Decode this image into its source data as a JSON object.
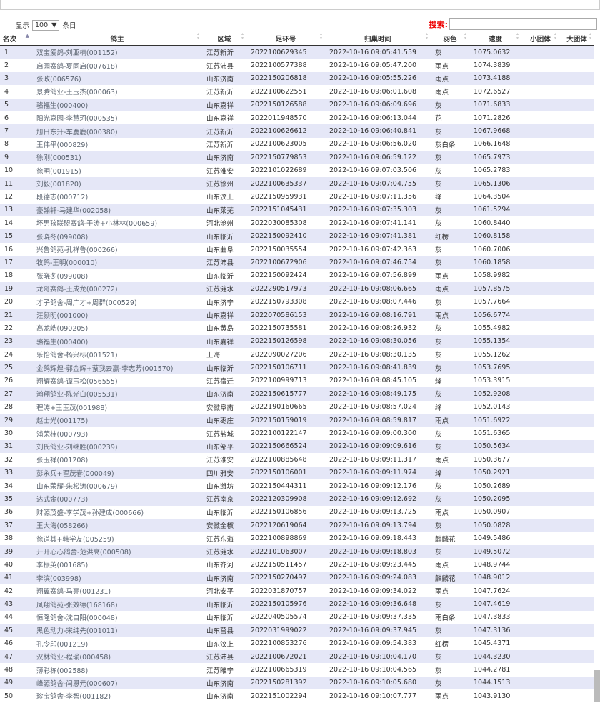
{
  "controls": {
    "show_label": "显示",
    "page_size": "100",
    "entries_label": "条目",
    "search_label": "搜索:"
  },
  "table": {
    "headers": [
      "名次",
      "鸽主",
      "区域",
      "足环号",
      "归巢时间",
      "羽色",
      "速度",
      "小团体",
      "大团体"
    ],
    "rows": [
      [
        "1",
        "双宝爱鸽-刘亚楠(001152)",
        "江苏新沂",
        "2022100629345",
        "2022-10-16 09:05:41.559",
        "灰",
        "1075.0632"
      ],
      [
        "2",
        "启园赛鸽-夏同启(007618)",
        "江苏沛县",
        "2022100577388",
        "2022-10-16 09:05:47.200",
        "雨点",
        "1074.3839"
      ],
      [
        "3",
        "张政(006576)",
        "山东济南",
        "2022150206818",
        "2022-10-16 09:05:55.226",
        "雨点",
        "1073.4188"
      ],
      [
        "4",
        "景腾鸽业-王玉杰(000063)",
        "江苏新沂",
        "2022100622551",
        "2022-10-16 09:06:01.608",
        "雨点",
        "1072.6527"
      ],
      [
        "5",
        "骆福生(000400)",
        "山东嘉祥",
        "2022150126588",
        "2022-10-16 09:06:09.696",
        "灰",
        "1071.6833"
      ],
      [
        "6",
        "阳光嘉园-李慧珂(000535)",
        "山东嘉祥",
        "2022011948570",
        "2022-10-16 09:06:13.044",
        "花",
        "1071.2826"
      ],
      [
        "7",
        "旭日东升-车鹿鹿(000380)",
        "江苏新沂",
        "2022100626612",
        "2022-10-16 09:06:40.841",
        "灰",
        "1067.9668"
      ],
      [
        "8",
        "王伟平(000829)",
        "江苏新沂",
        "2022100623005",
        "2022-10-16 09:06:56.020",
        "灰白条",
        "1066.1648"
      ],
      [
        "9",
        "徐刚(000531)",
        "山东济南",
        "2022150779853",
        "2022-10-16 09:06:59.122",
        "灰",
        "1065.7973"
      ],
      [
        "10",
        "徐明(001915)",
        "江苏淮安",
        "2022101022689",
        "2022-10-16 09:07:03.506",
        "灰",
        "1065.2783"
      ],
      [
        "11",
        "刘毅(001820)",
        "江苏徐州",
        "2022100635337",
        "2022-10-16 09:07:04.755",
        "灰",
        "1065.1306"
      ],
      [
        "12",
        "段德志(000712)",
        "山东汶上",
        "2022150959931",
        "2022-10-16 09:07:11.356",
        "绛",
        "1064.3504"
      ],
      [
        "13",
        "豪翰轩-马建华(002058)",
        "山东莱芜",
        "2022151045431",
        "2022-10-16 09:07:35.303",
        "灰",
        "1061.5294"
      ],
      [
        "14",
        "坏男孩联盟赛鸽-于涛+小林林(000659)",
        "河北沧州",
        "2022030085308",
        "2022-10-16 09:07:41.141",
        "灰",
        "1060.8440"
      ],
      [
        "15",
        "张晓冬(099008)",
        "山东临沂",
        "2022150092410",
        "2022-10-16 09:07:41.381",
        "红楞",
        "1060.8158"
      ],
      [
        "16",
        "兴鲁鸽苑-孔祥鲁(000266)",
        "山东曲阜",
        "2022150035554",
        "2022-10-16 09:07:42.363",
        "灰",
        "1060.7006"
      ],
      [
        "17",
        "牧鸽-王明(000010)",
        "江苏沛县",
        "2022100672906",
        "2022-10-16 09:07:46.754",
        "灰",
        "1060.1858"
      ],
      [
        "18",
        "张晓冬(099008)",
        "山东临沂",
        "2022150092424",
        "2022-10-16 09:07:56.899",
        "雨点",
        "1058.9982"
      ],
      [
        "19",
        "龙哥赛鸽-王成龙(000272)",
        "江苏涟水",
        "2022290517973",
        "2022-10-16 09:08:06.665",
        "雨点",
        "1057.8575"
      ],
      [
        "20",
        "才子鸽舍-周广才+周群(000529)",
        "山东济宁",
        "2022150793308",
        "2022-10-16 09:08:07.446",
        "灰",
        "1057.7664"
      ],
      [
        "21",
        "汪颜明(001000)",
        "山东嘉祥",
        "2022070586153",
        "2022-10-16 09:08:16.791",
        "雨点",
        "1056.6774"
      ],
      [
        "22",
        "高龙皓(090205)",
        "山东黄岛",
        "2022150735581",
        "2022-10-16 09:08:26.932",
        "灰",
        "1055.4982"
      ],
      [
        "23",
        "骆福生(000400)",
        "山东嘉祥",
        "2022150126598",
        "2022-10-16 09:08:30.056",
        "灰",
        "1055.1354"
      ],
      [
        "24",
        "乐怡鸽舍-杨兴标(001521)",
        "上海",
        "2022090027206",
        "2022-10-16 09:08:30.135",
        "灰",
        "1055.1262"
      ],
      [
        "25",
        "金鸽辉煌-郭金辉+蔡我去赢-李志芳(001570)",
        "山东临沂",
        "2022150106711",
        "2022-10-16 09:08:41.839",
        "灰",
        "1053.7695"
      ],
      [
        "26",
        "翔耀赛鸽-谭玉松(056555)",
        "江苏宿迁",
        "2022100999713",
        "2022-10-16 09:08:45.105",
        "绛",
        "1053.3915"
      ],
      [
        "27",
        "瀚翔鸽业-陈光白(005531)",
        "山东济南",
        "2022150615777",
        "2022-10-16 09:08:49.175",
        "灰",
        "1052.9208"
      ],
      [
        "28",
        "程涛+王玉茂(001988)",
        "安徽阜南",
        "2022190160665",
        "2022-10-16 09:08:57.024",
        "绛",
        "1052.0143"
      ],
      [
        "29",
        "赵士光(001175)",
        "山东枣庄",
        "2022150159019",
        "2022-10-16 09:08:59.817",
        "雨点",
        "1051.6922"
      ],
      [
        "30",
        "浦荣桂(000793)",
        "江苏盐城",
        "2022100122147",
        "2022-10-16 09:09:00.300",
        "灰",
        "1051.6365"
      ],
      [
        "31",
        "刘氏鸽业-刘继胜(000239)",
        "山东邹平",
        "2022150666524",
        "2022-10-16 09:09:09.616",
        "灰",
        "1050.5634"
      ],
      [
        "32",
        "张玉祥(001208)",
        "江苏淮安",
        "2022100885648",
        "2022-10-16 09:09:11.317",
        "雨点",
        "1050.3677"
      ],
      [
        "33",
        "彭永兵+翟茂春(000049)",
        "四川雅安",
        "2022150106001",
        "2022-10-16 09:09:11.974",
        "绛",
        "1050.2921"
      ],
      [
        "34",
        "山东荣耀-朱松涛(000679)",
        "山东潍坊",
        "2022150444311",
        "2022-10-16 09:09:12.176",
        "灰",
        "1050.2689"
      ],
      [
        "35",
        "达式金(000773)",
        "江苏南京",
        "2022120309908",
        "2022-10-16 09:09:12.692",
        "灰",
        "1050.2095"
      ],
      [
        "36",
        "财源茂盛-李学茂+孙建成(000666)",
        "山东临沂",
        "2022150106856",
        "2022-10-16 09:09:13.725",
        "雨点",
        "1050.0907"
      ],
      [
        "37",
        "王大海(058266)",
        "安徽全椒",
        "2022120619064",
        "2022-10-16 09:09:13.794",
        "灰",
        "1050.0828"
      ],
      [
        "38",
        "徐道其+韩学友(005259)",
        "江苏东海",
        "2022100898869",
        "2022-10-16 09:09:18.443",
        "麒麟花",
        "1049.5486"
      ],
      [
        "39",
        "开开心心鸽舍-范洪高(000508)",
        "江苏涟水",
        "2022101063007",
        "2022-10-16 09:09:18.803",
        "灰",
        "1049.5072"
      ],
      [
        "40",
        "李振英(001685)",
        "山东齐河",
        "2022150511457",
        "2022-10-16 09:09:23.445",
        "雨点",
        "1048.9744"
      ],
      [
        "41",
        "李滨(003998)",
        "山东济南",
        "2022150270497",
        "2022-10-16 09:09:24.083",
        "麒麟花",
        "1048.9012"
      ],
      [
        "42",
        "翔翼赛鸽-马亮(001231)",
        "河北安平",
        "2022031870757",
        "2022-10-16 09:09:34.022",
        "雨点",
        "1047.7624"
      ],
      [
        "43",
        "凤翔鸽苑-张效德(168168)",
        "山东临沂",
        "2022150105976",
        "2022-10-16 09:09:36.648",
        "灰",
        "1047.4619"
      ],
      [
        "44",
        "恒隆鸽舍-沈自阳(000048)",
        "山东临沂",
        "2022040505574",
        "2022-10-16 09:09:37.335",
        "雨白条",
        "1047.3833"
      ],
      [
        "45",
        "黑色动力-宋纯先(001011)",
        "山东莒县",
        "2022031999022",
        "2022-10-16 09:09:37.945",
        "灰",
        "1047.3136"
      ],
      [
        "46",
        "孔令印(001219)",
        "山东汶上",
        "2022100853276",
        "2022-10-16 09:09:54.383",
        "红楞",
        "1045.4371"
      ],
      [
        "47",
        "汉林鸽业-程瑜(000458)",
        "江苏沛县",
        "2022100672021",
        "2022-10-16 09:10:04.170",
        "灰",
        "1044.3230"
      ],
      [
        "48",
        "薄彩栋(002588)",
        "江苏睢宁",
        "2022100665319",
        "2022-10-16 09:10:04.565",
        "灰",
        "1044.2781"
      ],
      [
        "49",
        "峰源鸽舍-闫恩元(000607)",
        "山东济南",
        "2022150281392",
        "2022-10-16 09:10:05.680",
        "灰",
        "1044.1513"
      ],
      [
        "50",
        "珍宝鸽舍-李智(001182)",
        "山东济南",
        "2022151002294",
        "2022-10-16 09:10:07.777",
        "雨点",
        "1043.9130"
      ]
    ]
  }
}
